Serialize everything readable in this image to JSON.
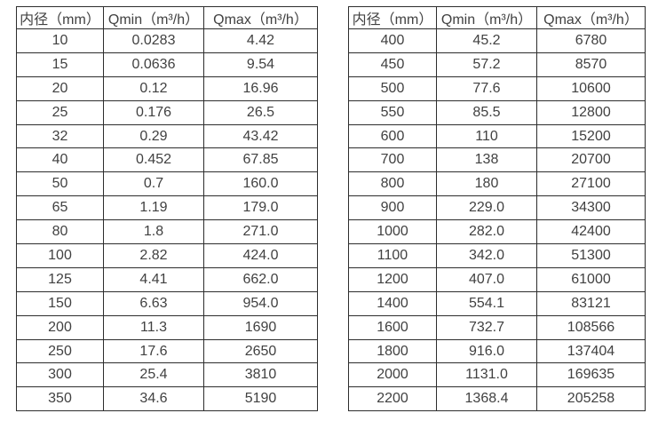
{
  "page": {
    "background_color": "#ffffff",
    "text_color": "#414141",
    "border_color": "#2d2d2d"
  },
  "chart_data": [
    {
      "type": "table",
      "title": "",
      "columns": [
        "内径（mm）",
        "Qmin（m³/h）",
        "Qmax（m³/h）"
      ],
      "rows": [
        [
          "10",
          "0.0283",
          "4.42"
        ],
        [
          "15",
          "0.0636",
          "9.54"
        ],
        [
          "20",
          "0.12",
          "16.96"
        ],
        [
          "25",
          "0.176",
          "26.5"
        ],
        [
          "32",
          "0.29",
          "43.42"
        ],
        [
          "40",
          "0.452",
          "67.85"
        ],
        [
          "50",
          "0.7",
          "160.0"
        ],
        [
          "65",
          "1.19",
          "179.0"
        ],
        [
          "80",
          "1.8",
          "271.0"
        ],
        [
          "100",
          "2.82",
          "424.0"
        ],
        [
          "125",
          "4.41",
          "662.0"
        ],
        [
          "150",
          "6.63",
          "954.0"
        ],
        [
          "200",
          "11.3",
          "1690"
        ],
        [
          "250",
          "17.6",
          "2650"
        ],
        [
          "300",
          "25.4",
          "3810"
        ],
        [
          "350",
          "34.6",
          "5190"
        ]
      ]
    },
    {
      "type": "table",
      "title": "",
      "columns": [
        "内径（mm）",
        "Qmin（m³/h）",
        "Qmax（m³/h）"
      ],
      "rows": [
        [
          "400",
          "45.2",
          "6780"
        ],
        [
          "450",
          "57.2",
          "8570"
        ],
        [
          "500",
          "77.6",
          "10600"
        ],
        [
          "550",
          "85.5",
          "12800"
        ],
        [
          "600",
          "110",
          "15200"
        ],
        [
          "700",
          "138",
          "20700"
        ],
        [
          "800",
          "180",
          "27100"
        ],
        [
          "900",
          "229.0",
          "34300"
        ],
        [
          "1000",
          "282.0",
          "42400"
        ],
        [
          "1100",
          "342.0",
          "51300"
        ],
        [
          "1200",
          "407.0",
          "61000"
        ],
        [
          "1400",
          "554.1",
          "83121"
        ],
        [
          "1600",
          "732.7",
          "108566"
        ],
        [
          "1800",
          "916.0",
          "137404"
        ],
        [
          "2000",
          "1131.0",
          "169635"
        ],
        [
          "2200",
          "1368.4",
          "205258"
        ]
      ]
    }
  ]
}
